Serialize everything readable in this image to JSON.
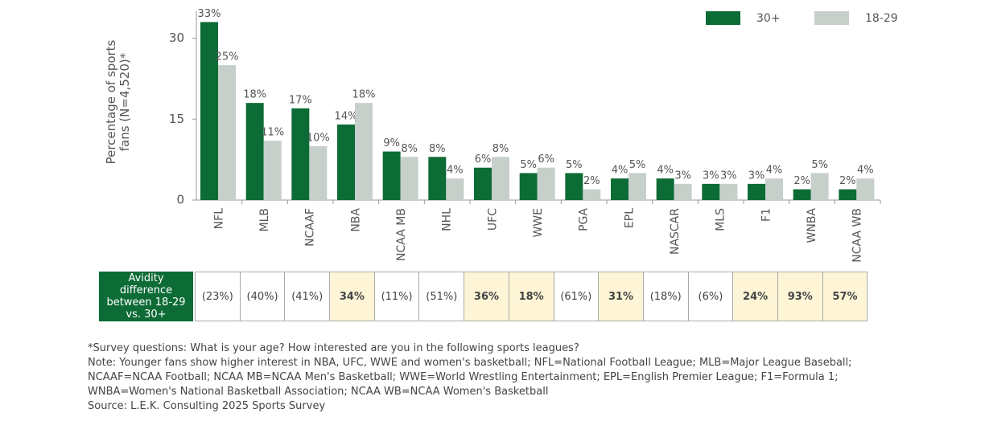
{
  "chart_data": {
    "type": "bar",
    "y_label": "Percentage of sports fans (N=4,520)*",
    "categories": [
      "NFL",
      "MLB",
      "NCAAF",
      "NBA",
      "NCAA MB",
      "NHL",
      "UFC",
      "WWE",
      "PGA",
      "EPL",
      "NASCAR",
      "MLS",
      "F1",
      "WNBA",
      "NCAA WB"
    ],
    "series": [
      {
        "name": "30+",
        "color": "#0d6b36",
        "values": [
          33,
          18,
          17,
          14,
          9,
          8,
          6,
          5,
          5,
          4,
          4,
          3,
          3,
          2,
          2
        ],
        "value_labels": [
          "33%",
          "18%",
          "17%",
          "14%",
          "9%",
          "8%",
          "6%",
          "5%",
          "5%",
          "4%",
          "4%",
          "3%",
          "3%",
          "2%",
          "2%"
        ]
      },
      {
        "name": "18-29",
        "color": "#c6cfca",
        "values": [
          25,
          11,
          10,
          18,
          8,
          4,
          8,
          6,
          2,
          5,
          3,
          3,
          4,
          5,
          4
        ],
        "value_labels": [
          "25%",
          "11%",
          "10%",
          "18%",
          "8%",
          "4%",
          "8%",
          "6%",
          "2%",
          "5%",
          "3%",
          "3%",
          "4%",
          "5%",
          "4%"
        ]
      }
    ],
    "ylim": [
      0,
      35
    ],
    "yticks": [
      0,
      15,
      30
    ],
    "legend": "top-right"
  },
  "table": {
    "header": "Avidity difference between 18-29 vs. 30+",
    "cells": [
      {
        "text": "(23%)",
        "highlight": false
      },
      {
        "text": "(40%)",
        "highlight": false
      },
      {
        "text": "(41%)",
        "highlight": false
      },
      {
        "text": "34%",
        "highlight": true
      },
      {
        "text": "(11%)",
        "highlight": false
      },
      {
        "text": "(51%)",
        "highlight": false
      },
      {
        "text": "36%",
        "highlight": true
      },
      {
        "text": "18%",
        "highlight": true
      },
      {
        "text": "(61%)",
        "highlight": false
      },
      {
        "text": "31%",
        "highlight": true
      },
      {
        "text": "(18%)",
        "highlight": false
      },
      {
        "text": "(6%)",
        "highlight": false
      },
      {
        "text": "24%",
        "highlight": true
      },
      {
        "text": "93%",
        "highlight": true
      },
      {
        "text": "57%",
        "highlight": true
      }
    ]
  },
  "notes": [
    "*Survey questions: What is your age? How interested are you in the following sports leagues?",
    "Note: Younger fans show higher interest in NBA, UFC, WWE and women's basketball; NFL=National Football League; MLB=Major League Baseball; NCAAF=NCAA Football; NCAA MB=NCAA Men's Basketball; WWE=World Wrestling Entertainment; EPL=English Premier League; F1=Formula 1; WNBA=Women's National Basketball Association; NCAA WB=NCAA Women's Basketball",
    "Source: L.E.K. Consulting 2025 Sports Survey"
  ]
}
